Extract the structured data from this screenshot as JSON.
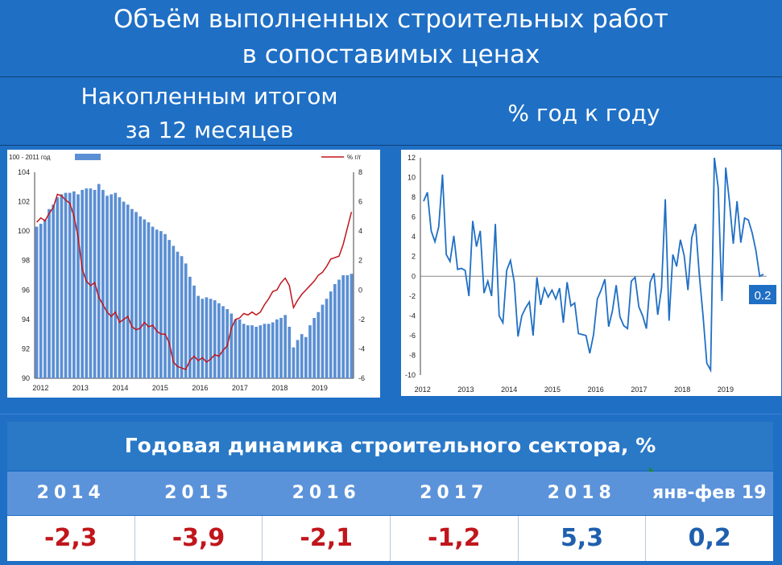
{
  "title_line1": "Объём выполненных строительных работ",
  "title_line2": "в сопоставимых ценах",
  "sub_left_line1": "Накопленным итогом",
  "sub_left_line2": "за 12 месяцев",
  "sub_right": "% год к году",
  "colors": {
    "bar": "#5b8fd4",
    "line_red": "#c0161c",
    "line_blue": "#1f6fc5",
    "bg": "#1f6fc5"
  },
  "chart_data": [
    {
      "type": "bar",
      "legend": {
        "bar": "100 - 2011 год",
        "line": "% г/г"
      },
      "legend_position": "top",
      "x_tick_labels": [
        "2012",
        "2013",
        "2014",
        "2015",
        "2016",
        "2017",
        "2018",
        "2019"
      ],
      "y_left_ticks": [
        "90",
        "92",
        "94",
        "96",
        "98",
        "100",
        "102",
        "104"
      ],
      "y_right_ticks": [
        "-6",
        "-4",
        "-2",
        "0",
        "2",
        "4",
        "6",
        "8"
      ],
      "ylim_left": [
        90,
        104
      ],
      "ylim_right": [
        -6,
        8
      ],
      "grid": false,
      "bar_values": [
        100.3,
        100.5,
        100.8,
        101.5,
        101.8,
        102.3,
        102.5,
        102.6,
        102.6,
        102.7,
        102.5,
        102.8,
        102.9,
        102.9,
        102.8,
        103.2,
        102.8,
        102.4,
        102.5,
        102.6,
        102.3,
        102.0,
        101.8,
        101.5,
        101.3,
        101.0,
        100.8,
        100.6,
        100.3,
        100.1,
        100.0,
        99.8,
        99.4,
        99.0,
        98.6,
        98.3,
        97.8,
        96.9,
        96.3,
        95.6,
        95.4,
        95.5,
        95.4,
        95.3,
        95.1,
        94.9,
        94.7,
        94.4,
        94.0,
        94.0,
        93.7,
        93.6,
        93.6,
        93.5,
        93.6,
        93.7,
        93.7,
        93.8,
        94.0,
        94.1,
        94.3,
        93.5,
        92.1,
        92.6,
        93.0,
        92.8,
        93.6,
        94.1,
        94.5,
        95.0,
        95.4,
        95.9,
        96.4,
        96.7,
        97.0,
        97.0,
        97.1
      ],
      "line_values": [
        4.6,
        4.9,
        4.7,
        5.2,
        5.6,
        6.5,
        6.4,
        6.1,
        5.9,
        5.0,
        3.6,
        1.4,
        0.6,
        0.3,
        0.5,
        -0.5,
        -1.0,
        -1.5,
        -1.8,
        -1.5,
        -2.2,
        -2.0,
        -1.8,
        -2.5,
        -2.7,
        -2.6,
        -2.2,
        -2.5,
        -2.4,
        -2.8,
        -3.0,
        -3.0,
        -3.6,
        -4.9,
        -5.2,
        -5.3,
        -5.4,
        -4.8,
        -4.5,
        -4.8,
        -4.6,
        -4.9,
        -4.7,
        -4.4,
        -4.5,
        -4.1,
        -3.8,
        -2.6,
        -2.0,
        -1.9,
        -1.6,
        -1.7,
        -1.5,
        -1.7,
        -1.5,
        -1.0,
        -0.6,
        -0.1,
        0.0,
        0.5,
        0.8,
        0.3,
        -1.2,
        -0.7,
        -0.3,
        0.0,
        0.3,
        0.6,
        1.0,
        1.2,
        1.6,
        2.1,
        2.2,
        2.3,
        3.1,
        4.2,
        5.3
      ]
    },
    {
      "type": "line",
      "x_tick_labels": [
        "2012",
        "2013",
        "2014",
        "2015",
        "2016",
        "2017",
        "2018",
        "2019"
      ],
      "y_ticks": [
        "-10",
        "-8",
        "-6",
        "-4",
        "-2",
        "0",
        "2",
        "4",
        "6",
        "8",
        "10",
        "12"
      ],
      "ylim": [
        -10,
        12
      ],
      "grid": false,
      "values": [
        7.6,
        8.5,
        4.6,
        3.5,
        5.0,
        10.3,
        2.2,
        1.5,
        4.1,
        0.7,
        0.8,
        0.6,
        -2.0,
        5.6,
        3.0,
        4.6,
        -1.7,
        -0.5,
        -2.0,
        5.3,
        -4.0,
        -4.7,
        0.6,
        1.6,
        -0.6,
        -6.1,
        -4.0,
        -3.2,
        -2.6,
        -6.0,
        -0.1,
        -2.9,
        -1.2,
        -2.1,
        -1.4,
        -2.3,
        -1.2,
        -4.7,
        -0.6,
        -3.0,
        -2.7,
        -5.8,
        -5.9,
        -6.0,
        -7.8,
        -5.9,
        -2.3,
        -1.4,
        -0.3,
        -5.1,
        -3.5,
        -0.9,
        -4.1,
        -5.0,
        -5.3,
        -0.5,
        -0.1,
        -3.1,
        -4.0,
        -5.3,
        -0.6,
        0.3,
        -3.9,
        -1.2,
        7.8,
        -4.5,
        2.2,
        1.0,
        3.7,
        2.1,
        -1.4,
        3.9,
        5.3,
        0.2,
        -4.0,
        -8.8,
        -9.5,
        12.0,
        9.0,
        -2.5,
        11.0,
        7.5,
        3.3,
        7.6,
        3.4,
        5.9,
        5.7,
        4.4,
        2.6,
        0.0,
        0.2
      ],
      "last_value_label": "0.2"
    }
  ],
  "table": {
    "title": "Годовая динамика строительного сектора, %",
    "headers": [
      "2014",
      "2015",
      "2016",
      "2017",
      "2018",
      "янв-фев 19"
    ],
    "values": [
      "-2,3",
      "-3,9",
      "-2,1",
      "-1,2",
      "5,3",
      "0,2"
    ]
  }
}
